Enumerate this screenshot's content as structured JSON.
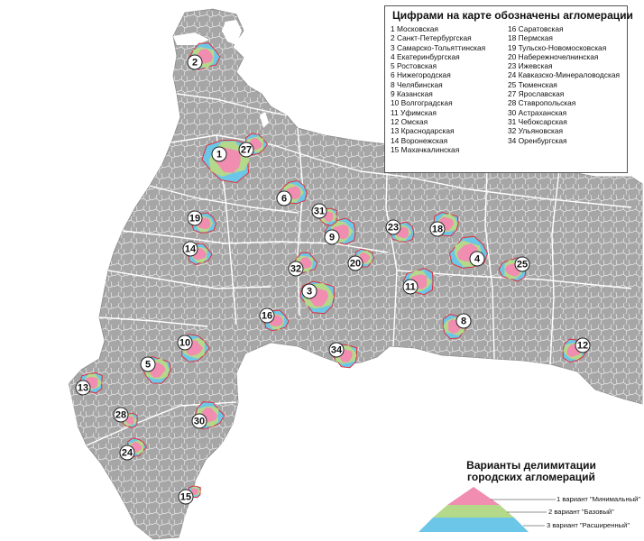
{
  "legend": {
    "title": "Цифрами на карте обозначены агломерации",
    "items_left": [
      "1 Московская",
      "2 Санкт-Петербургская",
      "3 Самарско-Тольяттинская",
      "4 Екатеринбургская",
      "5 Ростовская",
      "6 Нижегородская",
      "8 Челябинская",
      "9 Казанская",
      "10 Волгоградская",
      "11 Уфимская",
      "12 Омская",
      "13 Краснодарская",
      "14 Воронежская",
      "15 Махачкалинская"
    ],
    "items_right": [
      "16 Саратовская",
      "18 Пермская",
      "19 Тульско-Новомосковская",
      "20 Набережночелнинская",
      "23 Ижевская",
      "24 Кавказско-Минераловодская",
      "25 Тюменская",
      "27 Ярославская",
      "28 Ставропольская",
      "30 Астраханская",
      "31 Чебоксарская",
      "32 Ульяновская",
      "34 Оренбургская"
    ]
  },
  "variants": {
    "title_line1": "Варианты делимитации",
    "title_line2": "городских агломераций",
    "v1": "1 вариант \"Минимальный\"",
    "v2": "2 вариант \"Базовый\"",
    "v3": "3 вариант \"Расширенный\"",
    "colors": {
      "minimal": "#f08db0",
      "base": "#b5d98a",
      "extended": "#6cc6e8"
    }
  },
  "map": {
    "region_color": "#a6a6a6",
    "boundary_color": "#ffffff",
    "outline_color": "#e0303a",
    "water_color": "#ffffff"
  },
  "markers": [
    {
      "label": "1"
    },
    {
      "label": "2"
    },
    {
      "label": "3"
    },
    {
      "label": "4"
    },
    {
      "label": "5"
    },
    {
      "label": "6"
    },
    {
      "label": "8"
    },
    {
      "label": "9"
    },
    {
      "label": "10"
    },
    {
      "label": "11"
    },
    {
      "label": "12"
    },
    {
      "label": "13"
    },
    {
      "label": "14"
    },
    {
      "label": "15"
    },
    {
      "label": "16"
    },
    {
      "label": "18"
    },
    {
      "label": "19"
    },
    {
      "label": "20"
    },
    {
      "label": "23"
    },
    {
      "label": "24"
    },
    {
      "label": "25"
    },
    {
      "label": "27"
    },
    {
      "label": "28"
    },
    {
      "label": "30"
    },
    {
      "label": "31"
    },
    {
      "label": "32"
    },
    {
      "label": "34"
    }
  ]
}
